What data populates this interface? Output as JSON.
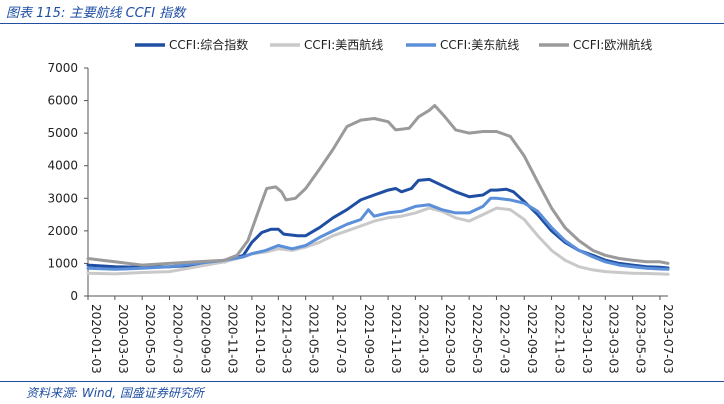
{
  "figure_title": "图表 115: 主要航线 CCFI 指数",
  "source_note": "资料来源: Wind, 国盛证券研究所",
  "chart_data": {
    "type": "line",
    "title": "主要航线 CCFI 指数",
    "xlabel": "",
    "ylabel": "",
    "ylim": [
      0,
      7000
    ],
    "yticks": [
      0,
      1000,
      2000,
      3000,
      4000,
      5000,
      6000,
      7000
    ],
    "xlim": [
      "2020-01-03",
      "2023-07-21"
    ],
    "x_tick_labels": [
      "2020-01-03",
      "2020-03-03",
      "2020-05-03",
      "2020-07-03",
      "2020-09-03",
      "2020-11-03",
      "2021-01-03",
      "2021-03-03",
      "2021-05-03",
      "2021-07-03",
      "2021-09-03",
      "2021-11-03",
      "2022-01-03",
      "2022-03-03",
      "2022-05-03",
      "2022-07-03",
      "2022-09-03",
      "2022-11-03",
      "2023-01-03",
      "2023-03-03",
      "2023-05-03",
      "2023-07-03"
    ],
    "legend_position": "top",
    "grid": false,
    "series": [
      {
        "name": "CCFI:综合指数",
        "color": "#1f4ea3",
        "points": [
          [
            "2020-01-03",
            950
          ],
          [
            "2020-03-03",
            900
          ],
          [
            "2020-05-03",
            880
          ],
          [
            "2020-07-03",
            900
          ],
          [
            "2020-09-03",
            950
          ],
          [
            "2020-11-03",
            1050
          ],
          [
            "2020-12-15",
            1250
          ],
          [
            "2021-01-03",
            1650
          ],
          [
            "2021-01-25",
            1950
          ],
          [
            "2021-02-15",
            2050
          ],
          [
            "2021-03-03",
            2050
          ],
          [
            "2021-03-15",
            1900
          ],
          [
            "2021-04-15",
            1850
          ],
          [
            "2021-05-03",
            1850
          ],
          [
            "2021-06-03",
            2100
          ],
          [
            "2021-07-03",
            2400
          ],
          [
            "2021-08-03",
            2650
          ],
          [
            "2021-09-03",
            2950
          ],
          [
            "2021-10-03",
            3100
          ],
          [
            "2021-11-03",
            3250
          ],
          [
            "2021-11-20",
            3300
          ],
          [
            "2021-12-03",
            3200
          ],
          [
            "2021-12-25",
            3300
          ],
          [
            "2022-01-10",
            3550
          ],
          [
            "2022-02-03",
            3580
          ],
          [
            "2022-03-03",
            3400
          ],
          [
            "2022-04-03",
            3200
          ],
          [
            "2022-05-03",
            3050
          ],
          [
            "2022-06-03",
            3100
          ],
          [
            "2022-06-20",
            3250
          ],
          [
            "2022-07-03",
            3250
          ],
          [
            "2022-07-25",
            3280
          ],
          [
            "2022-08-10",
            3200
          ],
          [
            "2022-09-03",
            2900
          ],
          [
            "2022-10-03",
            2500
          ],
          [
            "2022-11-03",
            2000
          ],
          [
            "2022-12-03",
            1650
          ],
          [
            "2023-01-03",
            1400
          ],
          [
            "2023-02-03",
            1250
          ],
          [
            "2023-03-03",
            1100
          ],
          [
            "2023-04-03",
            1000
          ],
          [
            "2023-05-03",
            950
          ],
          [
            "2023-06-03",
            900
          ],
          [
            "2023-07-03",
            880
          ],
          [
            "2023-07-21",
            860
          ]
        ]
      },
      {
        "name": "CCFI:美西航线",
        "color": "#c9c9c9",
        "points": [
          [
            "2020-01-03",
            700
          ],
          [
            "2020-03-03",
            680
          ],
          [
            "2020-05-03",
            720
          ],
          [
            "2020-07-03",
            750
          ],
          [
            "2020-09-03",
            900
          ],
          [
            "2020-11-03",
            1050
          ],
          [
            "2020-12-15",
            1200
          ],
          [
            "2021-01-03",
            1300
          ],
          [
            "2021-02-03",
            1350
          ],
          [
            "2021-03-03",
            1450
          ],
          [
            "2021-04-03",
            1400
          ],
          [
            "2021-05-03",
            1500
          ],
          [
            "2021-06-03",
            1650
          ],
          [
            "2021-07-03",
            1850
          ],
          [
            "2021-08-03",
            2000
          ],
          [
            "2021-09-03",
            2150
          ],
          [
            "2021-10-03",
            2300
          ],
          [
            "2021-11-03",
            2400
          ],
          [
            "2021-12-03",
            2450
          ],
          [
            "2022-01-03",
            2550
          ],
          [
            "2022-02-03",
            2700
          ],
          [
            "2022-03-03",
            2600
          ],
          [
            "2022-04-03",
            2400
          ],
          [
            "2022-05-03",
            2300
          ],
          [
            "2022-06-03",
            2500
          ],
          [
            "2022-07-03",
            2700
          ],
          [
            "2022-08-03",
            2650
          ],
          [
            "2022-09-03",
            2350
          ],
          [
            "2022-10-03",
            1850
          ],
          [
            "2022-11-03",
            1400
          ],
          [
            "2022-12-03",
            1100
          ],
          [
            "2023-01-03",
            900
          ],
          [
            "2023-02-03",
            800
          ],
          [
            "2023-03-03",
            750
          ],
          [
            "2023-04-03",
            720
          ],
          [
            "2023-05-03",
            700
          ],
          [
            "2023-06-03",
            690
          ],
          [
            "2023-07-03",
            680
          ],
          [
            "2023-07-21",
            670
          ]
        ]
      },
      {
        "name": "CCFI:美东航线",
        "color": "#5b8fd9",
        "points": [
          [
            "2020-01-03",
            850
          ],
          [
            "2020-03-03",
            820
          ],
          [
            "2020-05-03",
            850
          ],
          [
            "2020-07-03",
            900
          ],
          [
            "2020-09-03",
            1000
          ],
          [
            "2020-11-03",
            1100
          ],
          [
            "2020-12-15",
            1200
          ],
          [
            "2021-01-03",
            1300
          ],
          [
            "2021-02-03",
            1400
          ],
          [
            "2021-03-03",
            1550
          ],
          [
            "2021-04-03",
            1450
          ],
          [
            "2021-05-03",
            1550
          ],
          [
            "2021-06-03",
            1800
          ],
          [
            "2021-07-03",
            2000
          ],
          [
            "2021-08-03",
            2200
          ],
          [
            "2021-09-03",
            2350
          ],
          [
            "2021-09-20",
            2650
          ],
          [
            "2021-10-03",
            2450
          ],
          [
            "2021-11-03",
            2550
          ],
          [
            "2021-12-03",
            2600
          ],
          [
            "2022-01-03",
            2750
          ],
          [
            "2022-02-03",
            2800
          ],
          [
            "2022-03-03",
            2650
          ],
          [
            "2022-04-03",
            2550
          ],
          [
            "2022-05-03",
            2550
          ],
          [
            "2022-06-03",
            2750
          ],
          [
            "2022-06-20",
            3000
          ],
          [
            "2022-07-03",
            3000
          ],
          [
            "2022-08-03",
            2950
          ],
          [
            "2022-09-03",
            2850
          ],
          [
            "2022-10-03",
            2600
          ],
          [
            "2022-11-03",
            2100
          ],
          [
            "2022-12-03",
            1700
          ],
          [
            "2023-01-03",
            1400
          ],
          [
            "2023-02-03",
            1200
          ],
          [
            "2023-03-03",
            1050
          ],
          [
            "2023-04-03",
            950
          ],
          [
            "2023-05-03",
            900
          ],
          [
            "2023-06-03",
            850
          ],
          [
            "2023-07-03",
            830
          ],
          [
            "2023-07-21",
            820
          ]
        ]
      },
      {
        "name": "CCFI:欧洲航线",
        "color": "#9a9a9a",
        "points": [
          [
            "2020-01-03",
            1150
          ],
          [
            "2020-02-03",
            1100
          ],
          [
            "2020-03-03",
            1050
          ],
          [
            "2020-05-03",
            950
          ],
          [
            "2020-07-03",
            1000
          ],
          [
            "2020-09-03",
            1050
          ],
          [
            "2020-11-03",
            1100
          ],
          [
            "2020-12-01",
            1250
          ],
          [
            "2020-12-25",
            1700
          ],
          [
            "2021-01-20",
            2700
          ],
          [
            "2021-02-05",
            3300
          ],
          [
            "2021-02-25",
            3350
          ],
          [
            "2021-03-10",
            3200
          ],
          [
            "2021-03-20",
            2950
          ],
          [
            "2021-04-10",
            3000
          ],
          [
            "2021-05-03",
            3300
          ],
          [
            "2021-06-03",
            3900
          ],
          [
            "2021-07-03",
            4500
          ],
          [
            "2021-08-03",
            5200
          ],
          [
            "2021-09-03",
            5400
          ],
          [
            "2021-10-03",
            5450
          ],
          [
            "2021-11-03",
            5350
          ],
          [
            "2021-11-20",
            5100
          ],
          [
            "2021-12-20",
            5150
          ],
          [
            "2022-01-10",
            5500
          ],
          [
            "2022-02-03",
            5700
          ],
          [
            "2022-02-15",
            5850
          ],
          [
            "2022-03-10",
            5500
          ],
          [
            "2022-04-03",
            5100
          ],
          [
            "2022-05-03",
            5000
          ],
          [
            "2022-06-03",
            5050
          ],
          [
            "2022-07-03",
            5050
          ],
          [
            "2022-08-03",
            4900
          ],
          [
            "2022-09-03",
            4300
          ],
          [
            "2022-10-03",
            3500
          ],
          [
            "2022-11-03",
            2700
          ],
          [
            "2022-12-03",
            2100
          ],
          [
            "2023-01-03",
            1700
          ],
          [
            "2023-02-03",
            1400
          ],
          [
            "2023-03-03",
            1250
          ],
          [
            "2023-04-03",
            1150
          ],
          [
            "2023-05-03",
            1100
          ],
          [
            "2023-06-03",
            1050
          ],
          [
            "2023-07-03",
            1050
          ],
          [
            "2023-07-21",
            1000
          ]
        ]
      }
    ]
  }
}
